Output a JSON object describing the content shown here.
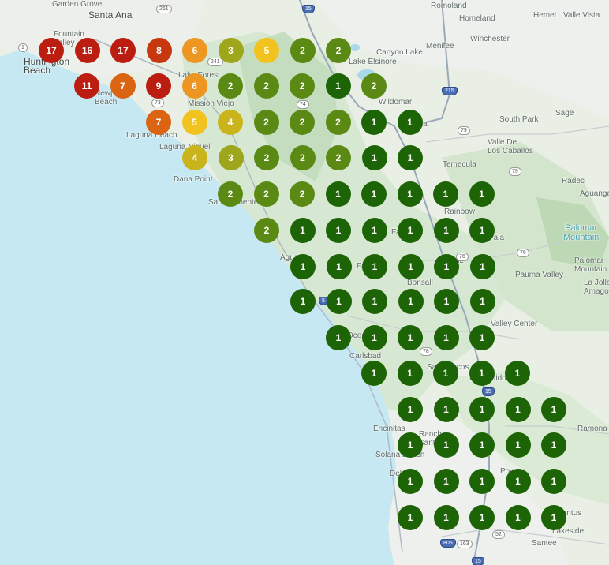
{
  "map": {
    "places": [
      {
        "name": "Garden Grove",
        "cls": "place"
      },
      {
        "name": "Santa Ana",
        "cls": "place city"
      },
      {
        "name": "Fountain\nValley",
        "cls": "place"
      },
      {
        "name": "Huntington\nBeach",
        "cls": "place city"
      },
      {
        "name": "Newport\nBeach",
        "cls": "place"
      },
      {
        "name": "Lake Forest",
        "cls": "place"
      },
      {
        "name": "Mission Viejo",
        "cls": "place"
      },
      {
        "name": "Laguna Beach",
        "cls": "place"
      },
      {
        "name": "Laguna Niguel",
        "cls": "place"
      },
      {
        "name": "Dana Point",
        "cls": "place"
      },
      {
        "name": "San Clemente",
        "cls": "place"
      },
      {
        "name": "Canyon Lake",
        "cls": "place"
      },
      {
        "name": "Lake Elsinore",
        "cls": "place"
      },
      {
        "name": "Wildomar",
        "cls": "place"
      },
      {
        "name": "Murrieta",
        "cls": "place"
      },
      {
        "name": "Temecula",
        "cls": "place"
      },
      {
        "name": "Romoland",
        "cls": "place"
      },
      {
        "name": "Homeland",
        "cls": "place"
      },
      {
        "name": "Hemet",
        "cls": "place"
      },
      {
        "name": "Valle Vista",
        "cls": "place"
      },
      {
        "name": "Menifee",
        "cls": "place"
      },
      {
        "name": "Winchester",
        "cls": "place"
      },
      {
        "name": "South Park",
        "cls": "place"
      },
      {
        "name": "Sage",
        "cls": "place"
      },
      {
        "name": "Valle De\nLos Caballos",
        "cls": "place"
      },
      {
        "name": "Radec",
        "cls": "place"
      },
      {
        "name": "Aguanga",
        "cls": "place"
      },
      {
        "name": "Rainbow",
        "cls": "place"
      },
      {
        "name": "Palomar\nMountain",
        "cls": "place water"
      },
      {
        "name": "Palomar\nMountain",
        "cls": "place"
      },
      {
        "name": "Pauma Valley",
        "cls": "place"
      },
      {
        "name": "La Jolla\nAmago",
        "cls": "place"
      },
      {
        "name": "Fallbrook",
        "cls": "place"
      },
      {
        "name": "Pala",
        "cls": "place"
      },
      {
        "name": "De Luz",
        "cls": "place"
      },
      {
        "name": "Agua",
        "cls": "place"
      },
      {
        "name": "Fairview",
        "cls": "place"
      },
      {
        "name": "Bonsall",
        "cls": "place"
      },
      {
        "name": "Valley Center",
        "cls": "place"
      },
      {
        "name": "Oceanside",
        "cls": "place"
      },
      {
        "name": "Carlsbad",
        "cls": "place"
      },
      {
        "name": "San Marcos",
        "cls": "place"
      },
      {
        "name": "Escondido",
        "cls": "place"
      },
      {
        "name": "Encinitas",
        "cls": "place"
      },
      {
        "name": "Rancho\nSanta Fe",
        "cls": "place"
      },
      {
        "name": "Solana Beach",
        "cls": "place"
      },
      {
        "name": "Del Mar",
        "cls": "place"
      },
      {
        "name": "Poway",
        "cls": "place"
      },
      {
        "name": "Ramona",
        "cls": "place"
      },
      {
        "name": "Lakeside",
        "cls": "place"
      },
      {
        "name": "Santee",
        "cls": "place"
      },
      {
        "name": "Santus",
        "cls": "place"
      }
    ],
    "shields": [
      {
        "label": "261",
        "cls": "shield"
      },
      {
        "label": "1",
        "cls": "shield"
      },
      {
        "label": "241",
        "cls": "shield"
      },
      {
        "label": "73",
        "cls": "shield"
      },
      {
        "label": "74",
        "cls": "shield"
      },
      {
        "label": "15",
        "cls": "shield interstate"
      },
      {
        "label": "215",
        "cls": "shield interstate"
      },
      {
        "label": "79",
        "cls": "shield"
      },
      {
        "label": "79",
        "cls": "shield"
      },
      {
        "label": "76",
        "cls": "shield"
      },
      {
        "label": "76",
        "cls": "shield"
      },
      {
        "label": "78",
        "cls": "shield"
      },
      {
        "label": "15",
        "cls": "shield interstate"
      },
      {
        "label": "805",
        "cls": "shield interstate"
      },
      {
        "label": "163",
        "cls": "shield"
      },
      {
        "label": "52",
        "cls": "shield"
      },
      {
        "label": "15",
        "cls": "shield interstate"
      },
      {
        "label": "5",
        "cls": "shield interstate"
      }
    ]
  },
  "clusters": [
    {
      "count": "17",
      "color": "#bb1d10"
    },
    {
      "count": "16",
      "color": "#bb1d10"
    },
    {
      "count": "17",
      "color": "#bb1d10"
    },
    {
      "count": "8",
      "color": "#c7380f"
    },
    {
      "count": "6",
      "color": "#ee9622"
    },
    {
      "count": "3",
      "color": "#9ea61c"
    },
    {
      "count": "5",
      "color": "#f2c21f"
    },
    {
      "count": "2",
      "color": "#5b8a14"
    },
    {
      "count": "2",
      "color": "#5b8a14"
    },
    {
      "count": "11",
      "color": "#bb1d10"
    },
    {
      "count": "7",
      "color": "#db6412"
    },
    {
      "count": "9",
      "color": "#bb1d10"
    },
    {
      "count": "6",
      "color": "#ee9622"
    },
    {
      "count": "2",
      "color": "#5b8a14"
    },
    {
      "count": "2",
      "color": "#5b8a14"
    },
    {
      "count": "2",
      "color": "#5b8a14"
    },
    {
      "count": "1",
      "color": "#1d6406"
    },
    {
      "count": "2",
      "color": "#5b8a14"
    },
    {
      "count": "7",
      "color": "#db6412"
    },
    {
      "count": "5",
      "color": "#f2c21f"
    },
    {
      "count": "4",
      "color": "#c9b41b"
    },
    {
      "count": "2",
      "color": "#5b8a14"
    },
    {
      "count": "2",
      "color": "#5b8a14"
    },
    {
      "count": "2",
      "color": "#5b8a14"
    },
    {
      "count": "1",
      "color": "#1d6406"
    },
    {
      "count": "1",
      "color": "#1d6406"
    },
    {
      "count": "4",
      "color": "#c9b41b"
    },
    {
      "count": "3",
      "color": "#9ea61c"
    },
    {
      "count": "2",
      "color": "#5b8a14"
    },
    {
      "count": "2",
      "color": "#5b8a14"
    },
    {
      "count": "2",
      "color": "#5b8a14"
    },
    {
      "count": "1",
      "color": "#1d6406"
    },
    {
      "count": "1",
      "color": "#1d6406"
    },
    {
      "count": "2",
      "color": "#5b8a14"
    },
    {
      "count": "2",
      "color": "#5b8a14"
    },
    {
      "count": "2",
      "color": "#5b8a14"
    },
    {
      "count": "1",
      "color": "#1d6406"
    },
    {
      "count": "1",
      "color": "#1d6406"
    },
    {
      "count": "1",
      "color": "#1d6406"
    },
    {
      "count": "1",
      "color": "#1d6406"
    },
    {
      "count": "1",
      "color": "#1d6406"
    },
    {
      "count": "2",
      "color": "#5b8a14"
    },
    {
      "count": "1",
      "color": "#1d6406"
    },
    {
      "count": "1",
      "color": "#1d6406"
    },
    {
      "count": "1",
      "color": "#1d6406"
    },
    {
      "count": "1",
      "color": "#1d6406"
    },
    {
      "count": "1",
      "color": "#1d6406"
    },
    {
      "count": "1",
      "color": "#1d6406"
    },
    {
      "count": "1",
      "color": "#1d6406"
    },
    {
      "count": "1",
      "color": "#1d6406"
    },
    {
      "count": "1",
      "color": "#1d6406"
    },
    {
      "count": "1",
      "color": "#1d6406"
    },
    {
      "count": "1",
      "color": "#1d6406"
    },
    {
      "count": "1",
      "color": "#1d6406"
    },
    {
      "count": "1",
      "color": "#1d6406"
    },
    {
      "count": "1",
      "color": "#1d6406"
    },
    {
      "count": "1",
      "color": "#1d6406"
    },
    {
      "count": "1",
      "color": "#1d6406"
    },
    {
      "count": "1",
      "color": "#1d6406"
    },
    {
      "count": "1",
      "color": "#1d6406"
    },
    {
      "count": "1",
      "color": "#1d6406"
    },
    {
      "count": "1",
      "color": "#1d6406"
    },
    {
      "count": "1",
      "color": "#1d6406"
    },
    {
      "count": "1",
      "color": "#1d6406"
    },
    {
      "count": "1",
      "color": "#1d6406"
    },
    {
      "count": "1",
      "color": "#1d6406"
    },
    {
      "count": "1",
      "color": "#1d6406"
    },
    {
      "count": "1",
      "color": "#1d6406"
    },
    {
      "count": "1",
      "color": "#1d6406"
    },
    {
      "count": "1",
      "color": "#1d6406"
    },
    {
      "count": "1",
      "color": "#1d6406"
    },
    {
      "count": "1",
      "color": "#1d6406"
    },
    {
      "count": "1",
      "color": "#1d6406"
    },
    {
      "count": "1",
      "color": "#1d6406"
    },
    {
      "count": "1",
      "color": "#1d6406"
    },
    {
      "count": "1",
      "color": "#1d6406"
    },
    {
      "count": "1",
      "color": "#1d6406"
    },
    {
      "count": "1",
      "color": "#1d6406"
    },
    {
      "count": "1",
      "color": "#1d6406"
    },
    {
      "count": "1",
      "color": "#1d6406"
    },
    {
      "count": "1",
      "color": "#1d6406"
    },
    {
      "count": "1",
      "color": "#1d6406"
    },
    {
      "count": "1",
      "color": "#1d6406"
    },
    {
      "count": "1",
      "color": "#1d6406"
    },
    {
      "count": "1",
      "color": "#1d6406"
    },
    {
      "count": "1",
      "color": "#1d6406"
    },
    {
      "count": "1",
      "color": "#1d6406"
    },
    {
      "count": "1",
      "color": "#1d6406"
    },
    {
      "count": "1",
      "color": "#1d6406"
    },
    {
      "count": "1",
      "color": "#1d6406"
    }
  ]
}
